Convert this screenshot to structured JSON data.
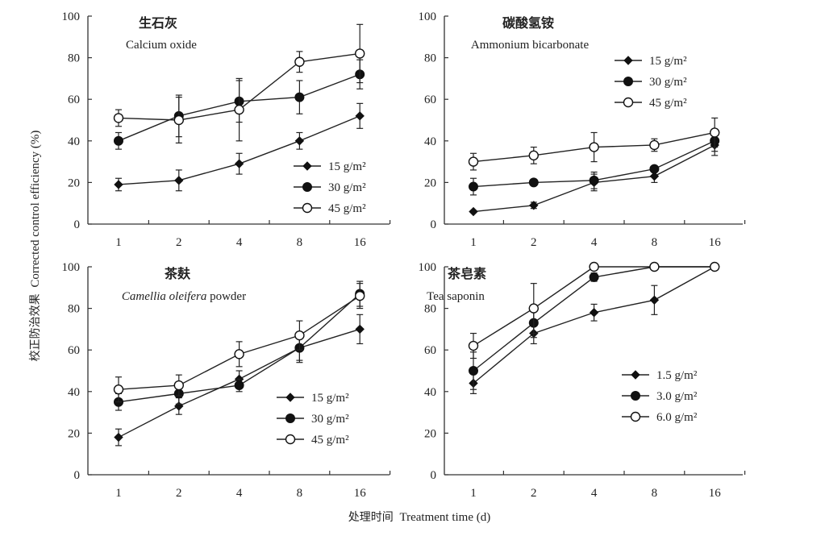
{
  "figure": {
    "ylabel_cn": "校正防治效果",
    "ylabel_en": "Corrected control efficiency (%)",
    "xlabel_cn": "处理时间",
    "xlabel_en": "Treatment time (d)"
  },
  "chart_data": [
    {
      "type": "line",
      "title_cn": "生石灰",
      "title_en": "Calcium oxide",
      "title_en_italic_part": "",
      "categories": [
        "1",
        "2",
        "4",
        "8",
        "16"
      ],
      "xlabel": "Treatment time (d)",
      "ylabel": "Corrected control efficiency (%)",
      "ylim": [
        0,
        100
      ],
      "yticks": [
        0,
        20,
        40,
        60,
        80,
        100
      ],
      "legend_position": "bottom-right",
      "series": [
        {
          "name": "15 g/m²",
          "marker": "diamond",
          "values": [
            19,
            21,
            29,
            40,
            52
          ],
          "errors": [
            3,
            5,
            5,
            4,
            6
          ]
        },
        {
          "name": "30 g/m²",
          "marker": "filled-circle",
          "values": [
            40,
            52,
            59,
            61,
            72
          ],
          "errors": [
            4,
            10,
            10,
            8,
            7
          ]
        },
        {
          "name": "45 g/m²",
          "marker": "open-circle",
          "values": [
            51,
            50,
            55,
            78,
            82
          ],
          "errors": [
            4,
            11,
            15,
            5,
            14
          ]
        }
      ]
    },
    {
      "type": "line",
      "title_cn": "碳酸氢铵",
      "title_en": "Ammonium bicarbonate",
      "title_en_italic_part": "",
      "categories": [
        "1",
        "2",
        "4",
        "8",
        "16"
      ],
      "xlabel": "Treatment time (d)",
      "ylabel": "Corrected control efficiency (%)",
      "ylim": [
        0,
        100
      ],
      "yticks": [
        0,
        20,
        40,
        60,
        80,
        100
      ],
      "legend_position": "top-right",
      "series": [
        {
          "name": "15 g/m²",
          "marker": "diamond",
          "values": [
            6,
            9,
            20,
            23,
            38
          ],
          "errors": [
            0.5,
            1.5,
            4,
            3,
            5
          ]
        },
        {
          "name": "30 g/m²",
          "marker": "filled-circle",
          "values": [
            18,
            20,
            21,
            26.5,
            40
          ],
          "errors": [
            4,
            1.5,
            4,
            1,
            5
          ]
        },
        {
          "name": "45 g/m²",
          "marker": "open-circle",
          "values": [
            30,
            33,
            37,
            38,
            44
          ],
          "errors": [
            4,
            4,
            7,
            3,
            7
          ]
        }
      ]
    },
    {
      "type": "line",
      "title_cn": "茶麸",
      "title_en": "powder",
      "title_en_italic_part": "Camellia oleifera",
      "categories": [
        "1",
        "2",
        "4",
        "8",
        "16"
      ],
      "xlabel": "Treatment time (d)",
      "ylabel": "Corrected control efficiency (%)",
      "ylim": [
        0,
        100
      ],
      "yticks": [
        0,
        20,
        40,
        60,
        80,
        100
      ],
      "legend_position": "bottom-right",
      "series": [
        {
          "name": "15 g/m²",
          "marker": "diamond",
          "values": [
            18,
            33,
            46,
            61,
            70
          ],
          "errors": [
            4,
            4,
            4,
            7,
            7
          ]
        },
        {
          "name": "30 g/m²",
          "marker": "filled-circle",
          "values": [
            35,
            39,
            43,
            61,
            87
          ],
          "errors": [
            4,
            5,
            3,
            6,
            6
          ]
        },
        {
          "name": "45 g/m²",
          "marker": "open-circle",
          "values": [
            41,
            43,
            58,
            67,
            86
          ],
          "errors": [
            6,
            5,
            6,
            7,
            6
          ]
        }
      ]
    },
    {
      "type": "line",
      "title_cn": "茶皂素",
      "title_en": "Tea saponin",
      "title_en_italic_part": "",
      "categories": [
        "1",
        "2",
        "4",
        "8",
        "16"
      ],
      "xlabel": "Treatment time (d)",
      "ylabel": "Corrected control efficiency (%)",
      "ylim": [
        0,
        100
      ],
      "yticks": [
        0,
        20,
        40,
        60,
        80,
        100
      ],
      "legend_position": "middle-right",
      "series": [
        {
          "name": "1.5 g/m²",
          "marker": "diamond",
          "values": [
            44,
            68,
            78,
            84,
            100
          ],
          "errors": [
            5,
            5,
            4,
            7,
            0
          ]
        },
        {
          "name": "3.0 g/m²",
          "marker": "filled-circle",
          "values": [
            50,
            73,
            95,
            100,
            100
          ],
          "errors": [
            9,
            7,
            2,
            0,
            0
          ]
        },
        {
          "name": "6.0 g/m²",
          "marker": "open-circle",
          "values": [
            62,
            80,
            100,
            100,
            100
          ],
          "errors": [
            6,
            12,
            0,
            0,
            0
          ]
        }
      ]
    }
  ]
}
